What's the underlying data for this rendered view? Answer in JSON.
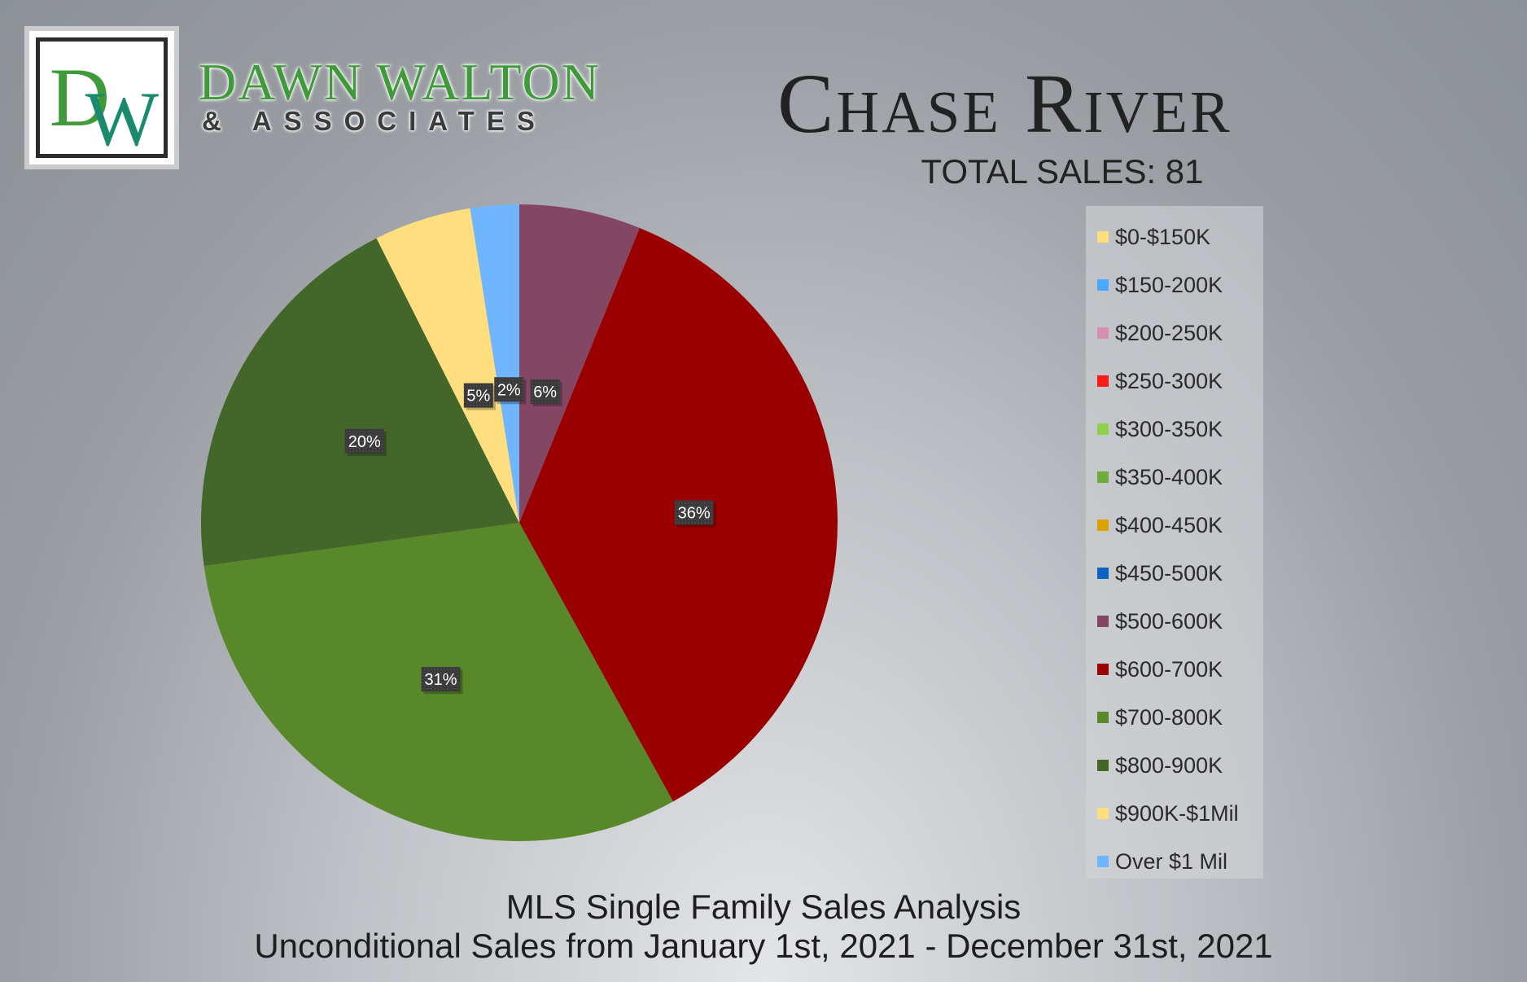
{
  "brand": {
    "monogram": "DW",
    "name": "DAWN WALTON",
    "sub": "& ASSOCIATES"
  },
  "title": "Chase River",
  "total_sales_text": "TOTAL SALES: 81",
  "footer": {
    "line1": "MLS Single Family Sales Analysis",
    "line2": "Unconditional Sales from January 1st, 2021 - December 31st, 2021"
  },
  "colors": {
    "brand_green": "#3f9a3a",
    "brand_teal": "#1a8a6e"
  },
  "chart_data": {
    "type": "pie",
    "start": "12 o'clock, clockwise",
    "legend_position": "right",
    "categories": [
      "$0-$150K",
      "$150-200K",
      "$200-250K",
      "$250-300K",
      "$300-350K",
      "$350-400K",
      "$400-450K",
      "$450-500K",
      "$500-600K",
      "$600-700K",
      "$700-800K",
      "$800-900K",
      "$900K-$1Mil",
      "Over $1 Mil"
    ],
    "colors": [
      "#ffde80",
      "#4aa8ff",
      "#d68fb0",
      "#ff1a1a",
      "#8fd14f",
      "#6faa3c",
      "#d9a400",
      "#0b63c0",
      "#844763",
      "#9b0000",
      "#58882a",
      "#426729",
      "#ffde80",
      "#70b5ff"
    ],
    "values": [
      0,
      0,
      0,
      0,
      0,
      0,
      0,
      0,
      5,
      29,
      25,
      16,
      4,
      2
    ],
    "labels": [
      "",
      "",
      "",
      "",
      "",
      "",
      "",
      "",
      "6%",
      "36%",
      "31%",
      "20%",
      "5%",
      "2%"
    ]
  }
}
